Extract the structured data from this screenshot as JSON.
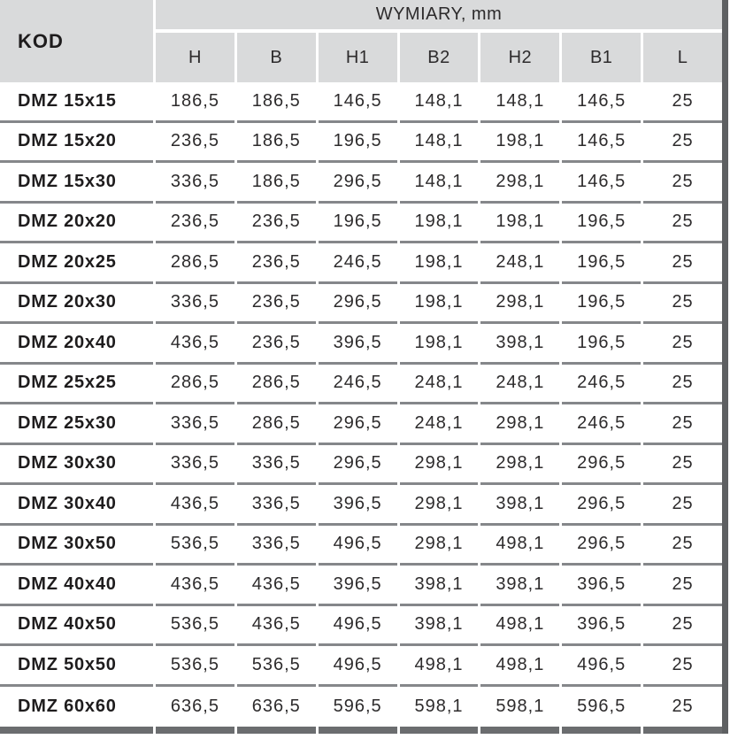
{
  "header": {
    "kod_label": "KOD",
    "group_label": "WYMIARY, mm",
    "columns": [
      "H",
      "B",
      "H1",
      "B2",
      "H2",
      "B1",
      "L"
    ]
  },
  "rows": [
    {
      "kod": "DMZ 15x15",
      "values": [
        "186,5",
        "186,5",
        "146,5",
        "148,1",
        "148,1",
        "146,5",
        "25"
      ]
    },
    {
      "kod": "DMZ 15x20",
      "values": [
        "236,5",
        "186,5",
        "196,5",
        "148,1",
        "198,1",
        "146,5",
        "25"
      ]
    },
    {
      "kod": "DMZ 15x30",
      "values": [
        "336,5",
        "186,5",
        "296,5",
        "148,1",
        "298,1",
        "146,5",
        "25"
      ]
    },
    {
      "kod": "DMZ 20x20",
      "values": [
        "236,5",
        "236,5",
        "196,5",
        "198,1",
        "198,1",
        "196,5",
        "25"
      ]
    },
    {
      "kod": "DMZ 20x25",
      "values": [
        "286,5",
        "236,5",
        "246,5",
        "198,1",
        "248,1",
        "196,5",
        "25"
      ]
    },
    {
      "kod": "DMZ 20x30",
      "values": [
        "336,5",
        "236,5",
        "296,5",
        "198,1",
        "298,1",
        "196,5",
        "25"
      ]
    },
    {
      "kod": "DMZ 20x40",
      "values": [
        "436,5",
        "236,5",
        "396,5",
        "198,1",
        "398,1",
        "196,5",
        "25"
      ]
    },
    {
      "kod": "DMZ 25x25",
      "values": [
        "286,5",
        "286,5",
        "246,5",
        "248,1",
        "248,1",
        "246,5",
        "25"
      ]
    },
    {
      "kod": "DMZ 25x30",
      "values": [
        "336,5",
        "286,5",
        "296,5",
        "248,1",
        "298,1",
        "246,5",
        "25"
      ]
    },
    {
      "kod": "DMZ 30x30",
      "values": [
        "336,5",
        "336,5",
        "296,5",
        "298,1",
        "298,1",
        "296,5",
        "25"
      ]
    },
    {
      "kod": "DMZ 30x40",
      "values": [
        "436,5",
        "336,5",
        "396,5",
        "298,1",
        "398,1",
        "296,5",
        "25"
      ]
    },
    {
      "kod": "DMZ 30x50",
      "values": [
        "536,5",
        "336,5",
        "496,5",
        "298,1",
        "498,1",
        "296,5",
        "25"
      ]
    },
    {
      "kod": "DMZ 40x40",
      "values": [
        "436,5",
        "436,5",
        "396,5",
        "398,1",
        "398,1",
        "396,5",
        "25"
      ]
    },
    {
      "kod": "DMZ 40x50",
      "values": [
        "536,5",
        "436,5",
        "496,5",
        "398,1",
        "498,1",
        "396,5",
        "25"
      ]
    },
    {
      "kod": "DMZ 50x50",
      "values": [
        "536,5",
        "536,5",
        "496,5",
        "498,1",
        "498,1",
        "496,5",
        "25"
      ]
    },
    {
      "kod": "DMZ 60x60",
      "values": [
        "636,5",
        "636,5",
        "596,5",
        "598,1",
        "598,1",
        "596,5",
        "25"
      ]
    }
  ],
  "colors": {
    "header_bg": "#d9dadb",
    "separator": "#85878a",
    "bottom_bar": "#6b6d6f",
    "right_bar": "#5e6062",
    "code_text": "#1e1c1d",
    "value_text": "#2d2b2c"
  }
}
